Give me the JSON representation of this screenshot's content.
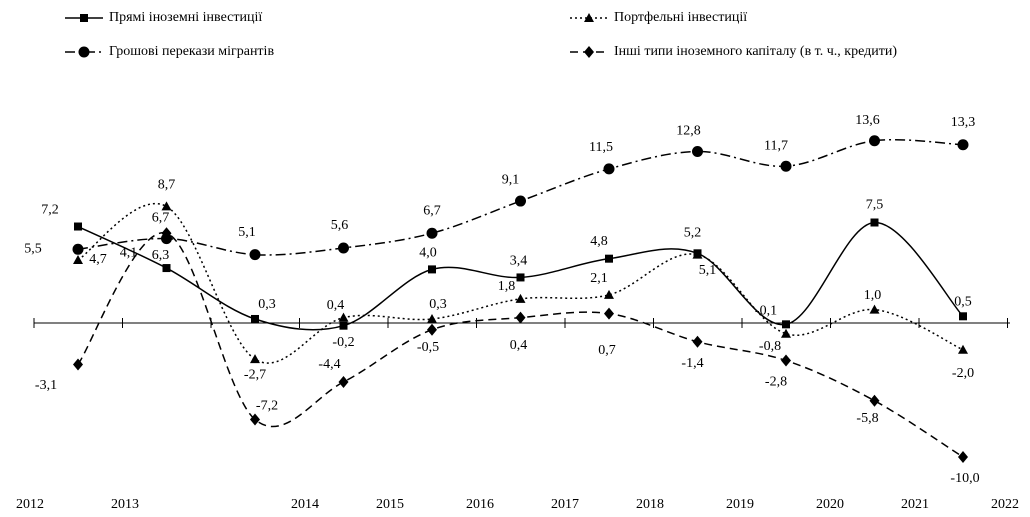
{
  "chart_data": {
    "type": "line",
    "categories": [
      "2012",
      "2013",
      "2014",
      "2015",
      "2016",
      "2017",
      "2018",
      "2019",
      "2020",
      "2021",
      "2022"
    ],
    "ylim": [
      -11,
      14
    ],
    "series": [
      {
        "name": "Прямі іноземні інвестиції",
        "color": "#000000",
        "values": [
          7.2,
          4.1,
          0.3,
          -0.2,
          4.0,
          3.4,
          4.8,
          5.2,
          -0.1,
          7.5,
          0.5
        ],
        "value_labels": [
          "7,2",
          "4,1",
          "0,3",
          "-0,2",
          "4,0",
          "3,4",
          "4,8",
          "5,2",
          "-0,1",
          "7,5",
          "0,5"
        ]
      },
      {
        "name": "Портфельні інвестиції",
        "color": "#000000",
        "values": [
          4.7,
          8.7,
          -2.7,
          0.4,
          0.3,
          1.8,
          2.1,
          5.1,
          -0.8,
          1.0,
          -2.0
        ],
        "value_labels": [
          "4,7",
          "8,7",
          "-2,7",
          "0,4",
          "0,3",
          "1,8",
          "2,1",
          "5,1",
          "-0,8",
          "1,0",
          "-2,0"
        ]
      },
      {
        "name": "Грошові перекази мігрантів",
        "color": "#000000",
        "values": [
          5.5,
          6.3,
          5.1,
          5.6,
          6.7,
          9.1,
          11.5,
          12.8,
          11.7,
          13.6,
          13.3
        ],
        "value_labels": [
          "5,5",
          "6,3",
          "5,1",
          "5,6",
          "6,7",
          "9,1",
          "11,5",
          "12,8",
          "11,7",
          "13,6",
          "13,3"
        ]
      },
      {
        "name": "Інші типи іноземного капіталу (в т. ч., кредити)",
        "color": "#000000",
        "values": [
          -3.1,
          6.7,
          -7.2,
          -4.4,
          -0.5,
          0.4,
          0.7,
          -1.4,
          -2.8,
          -5.8,
          -10.0
        ],
        "value_labels": [
          "-3,1",
          "6,7",
          "-7,2",
          "-4,4",
          "-0,5",
          "0,4",
          "0,7",
          "-1,4",
          "-2,8",
          "-5,8",
          "-10,0"
        ]
      }
    ]
  }
}
